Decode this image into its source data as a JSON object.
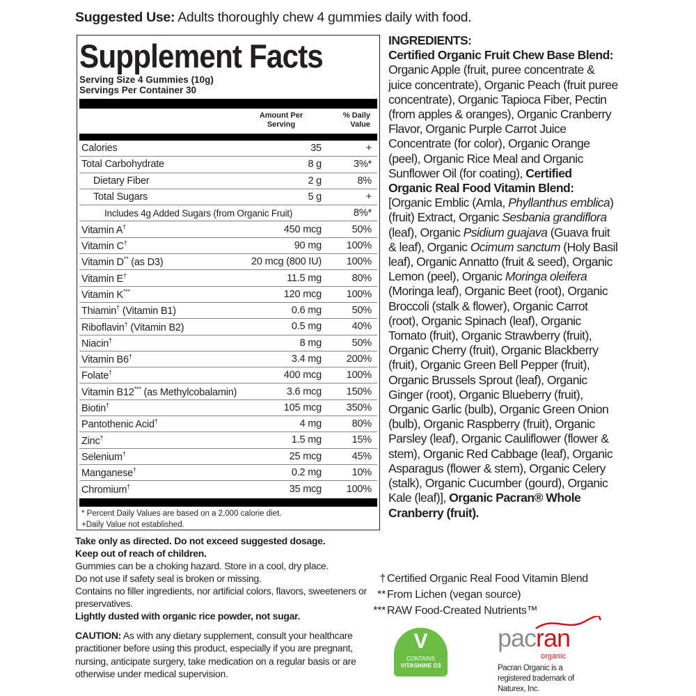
{
  "suggested_use": {
    "label": "Suggested Use:",
    "text": " Adults thoroughly chew 4 gummies daily with food."
  },
  "facts": {
    "title": "Supplement Facts",
    "serving_size": "Serving Size 4 Gummies (10g)",
    "servings_per_container": "Servings Per Container 30",
    "col_amount": "Amount Per Serving",
    "col_dv": "% Daily Value",
    "rows": [
      {
        "name": "Calories",
        "sup": "",
        "amount": "35",
        "dv": "+",
        "indent": 0
      },
      {
        "name": "Total Carbohydrate",
        "sup": "",
        "amount": "8 g",
        "dv": "3%*",
        "indent": 0
      },
      {
        "name": "Dietary Fiber",
        "sup": "",
        "amount": "2 g",
        "dv": "8%",
        "indent": 1
      },
      {
        "name": "Total Sugars",
        "sup": "",
        "amount": "5 g",
        "dv": "+",
        "indent": 1
      },
      {
        "name": "Includes 4g Added Sugars (from Organic Fruit)",
        "sup": "",
        "amount": "",
        "dv": "8%*",
        "indent": 2
      },
      {
        "name": "Vitamin A",
        "sup": "†",
        "amount": "450 mcg",
        "dv": "50%",
        "indent": 0
      },
      {
        "name": "Vitamin C",
        "sup": "†",
        "amount": "90 mg",
        "dv": "100%",
        "indent": 0
      },
      {
        "name": "Vitamin D",
        "sup": "**",
        "extra": " (as D3)",
        "amount": "20 mcg (800 IU)",
        "dv": "100%",
        "indent": 0
      },
      {
        "name": "Vitamin E",
        "sup": "†",
        "amount": "11.5 mg",
        "dv": "80%",
        "indent": 0
      },
      {
        "name": "Vitamin K",
        "sup": "***",
        "amount": "120 mcg",
        "dv": "100%",
        "indent": 0
      },
      {
        "name": "Thiamin",
        "sup": "†",
        "extra": " (Vitamin B1)",
        "amount": "0.6 mg",
        "dv": "50%",
        "indent": 0
      },
      {
        "name": "Riboflavin",
        "sup": "†",
        "extra": " (Vitamin B2)",
        "amount": "0.5 mg",
        "dv": "40%",
        "indent": 0
      },
      {
        "name": "Niacin",
        "sup": "†",
        "amount": "8 mg",
        "dv": "50%",
        "indent": 0
      },
      {
        "name": "Vitamin B6",
        "sup": "†",
        "amount": "3.4 mg",
        "dv": "200%",
        "indent": 0
      },
      {
        "name": "Folate",
        "sup": "†",
        "amount": "400 mcg",
        "dv": "100%",
        "indent": 0
      },
      {
        "name": "Vitamin B12",
        "sup": "***",
        "extra": " (as Methylcobalamin)",
        "amount": "3.6 mcg",
        "dv": "150%",
        "indent": 0
      },
      {
        "name": "Biotin",
        "sup": "†",
        "amount": "105 mcg",
        "dv": "350%",
        "indent": 0
      },
      {
        "name": "Pantothenic Acid",
        "sup": "†",
        "amount": "4 mg",
        "dv": "80%",
        "indent": 0
      },
      {
        "name": "Zinc",
        "sup": "†",
        "amount": "1.5 mg",
        "dv": "15%",
        "indent": 0
      },
      {
        "name": "Selenium",
        "sup": "†",
        "amount": "25 mcg",
        "dv": "45%",
        "indent": 0
      },
      {
        "name": "Manganese",
        "sup": "†",
        "amount": "0.2 mg",
        "dv": "10%",
        "indent": 0
      },
      {
        "name": "Chromium",
        "sup": "†",
        "amount": "35 mcg",
        "dv": "100%",
        "indent": 0
      }
    ],
    "footnote1": "* Percent Daily Values are based on a 2,000 calorie diet.",
    "footnote2": "+Daily Value not established."
  },
  "warnings": [
    {
      "text": "Take only as directed. Do not exceed suggested dosage.",
      "bold": true
    },
    {
      "text": "Keep out of reach of children.",
      "bold": true
    },
    {
      "text": "Gummies can be a choking hazard. Store in a cool, dry place.",
      "bold": false
    },
    {
      "text": "Do not use if safety seal is broken or missing.",
      "bold": false
    },
    {
      "text": "Contains no filler ingredients, nor artificial colors, flavors, sweeteners or preservatives.",
      "bold": false
    },
    {
      "text": "Lightly dusted with organic rice powder, not sugar.",
      "bold": true
    }
  ],
  "caution": {
    "label": "CAUTION:",
    "text": " As with any dietary supplement, consult your healthcare practitioner before using this product, especially if you are pregnant, nursing, anticipate surgery, take medication on a regular basis or are otherwise under medical supervision."
  },
  "ingredients": {
    "heading": "INGREDIENTS:",
    "segments": [
      {
        "t": "Certified Organic Fruit Chew Base Blend:",
        "s": "b"
      },
      {
        "t": " Organic Apple (fruit, puree concentrate & juice concentrate), Organic Peach (fruit puree concentrate), Organic Tapioca Fiber, Pectin (from apples & oranges), Organic Cranberry Flavor, Organic Purple Carrot Juice Concentrate (for color), Organic Orange (peel), Organic Rice Meal and Organic Sunflower Oil (for coating), ",
        "s": ""
      },
      {
        "t": "Certified Organic Real Food Vitamin Blend:",
        "s": "b"
      },
      {
        "t": " [Organic Emblic (Amla, ",
        "s": ""
      },
      {
        "t": "Phyllanthus emblica",
        "s": "i"
      },
      {
        "t": ") (fruit) Extract, Organic ",
        "s": ""
      },
      {
        "t": "Sesbania grandiflora",
        "s": "i"
      },
      {
        "t": " (leaf), Organic ",
        "s": ""
      },
      {
        "t": "Psidium guajava",
        "s": "i"
      },
      {
        "t": " (Guava fruit & leaf), Organic ",
        "s": ""
      },
      {
        "t": "Ocimum sanctum",
        "s": "i"
      },
      {
        "t": " (Holy Basil leaf), Organic Annatto (fruit & seed), Organic Lemon (peel), Organic ",
        "s": ""
      },
      {
        "t": "Moringa oleifera",
        "s": "i"
      },
      {
        "t": " (Moringa leaf), Organic Beet (root), Organic Broccoli (stalk & flower), Organic Carrot (root), Organic Spinach (leaf), Organic Tomato (fruit), Organic Strawberry (fruit), Organic Cherry (fruit), Organic Blackberry (fruit), Organic Green Bell Pepper (fruit), Organic Brussels Sprout (leaf), Organic Ginger (root), Organic Blueberry (fruit), Organic Garlic (bulb), Organic Green Onion (bulb), Organic Raspberry (fruit), Organic Parsley (leaf), Organic Cauliflower (flower & stem), Organic Red Cabbage (leaf), Organic Asparagus (flower & stem), Organic Celery (stalk), Organic Cucumber (gourd), Organic Kale (leaf)], ",
        "s": ""
      },
      {
        "t": "Organic Pacran® Whole Cranberry (fruit).",
        "s": "b"
      }
    ]
  },
  "notes": [
    {
      "mark": "†",
      "text": "Certified Organic Real Food Vitamin Blend"
    },
    {
      "mark": "**",
      "text": "From Lichen (vegan source)"
    },
    {
      "mark": "***",
      "text": "RAW Food-Created Nutrients™"
    }
  ],
  "vitashine": {
    "line1": "CONTAINS",
    "line2": "VITASHINE D3",
    "color": "#6cbd45"
  },
  "pacran": {
    "logo_a": "pac",
    "logo_b": "ran",
    "sub": "organic",
    "trademark": "Pacran Organic is a registered trademark of Naturex, Inc.",
    "gray": "#8a8c8e",
    "red": "#c4161c"
  }
}
